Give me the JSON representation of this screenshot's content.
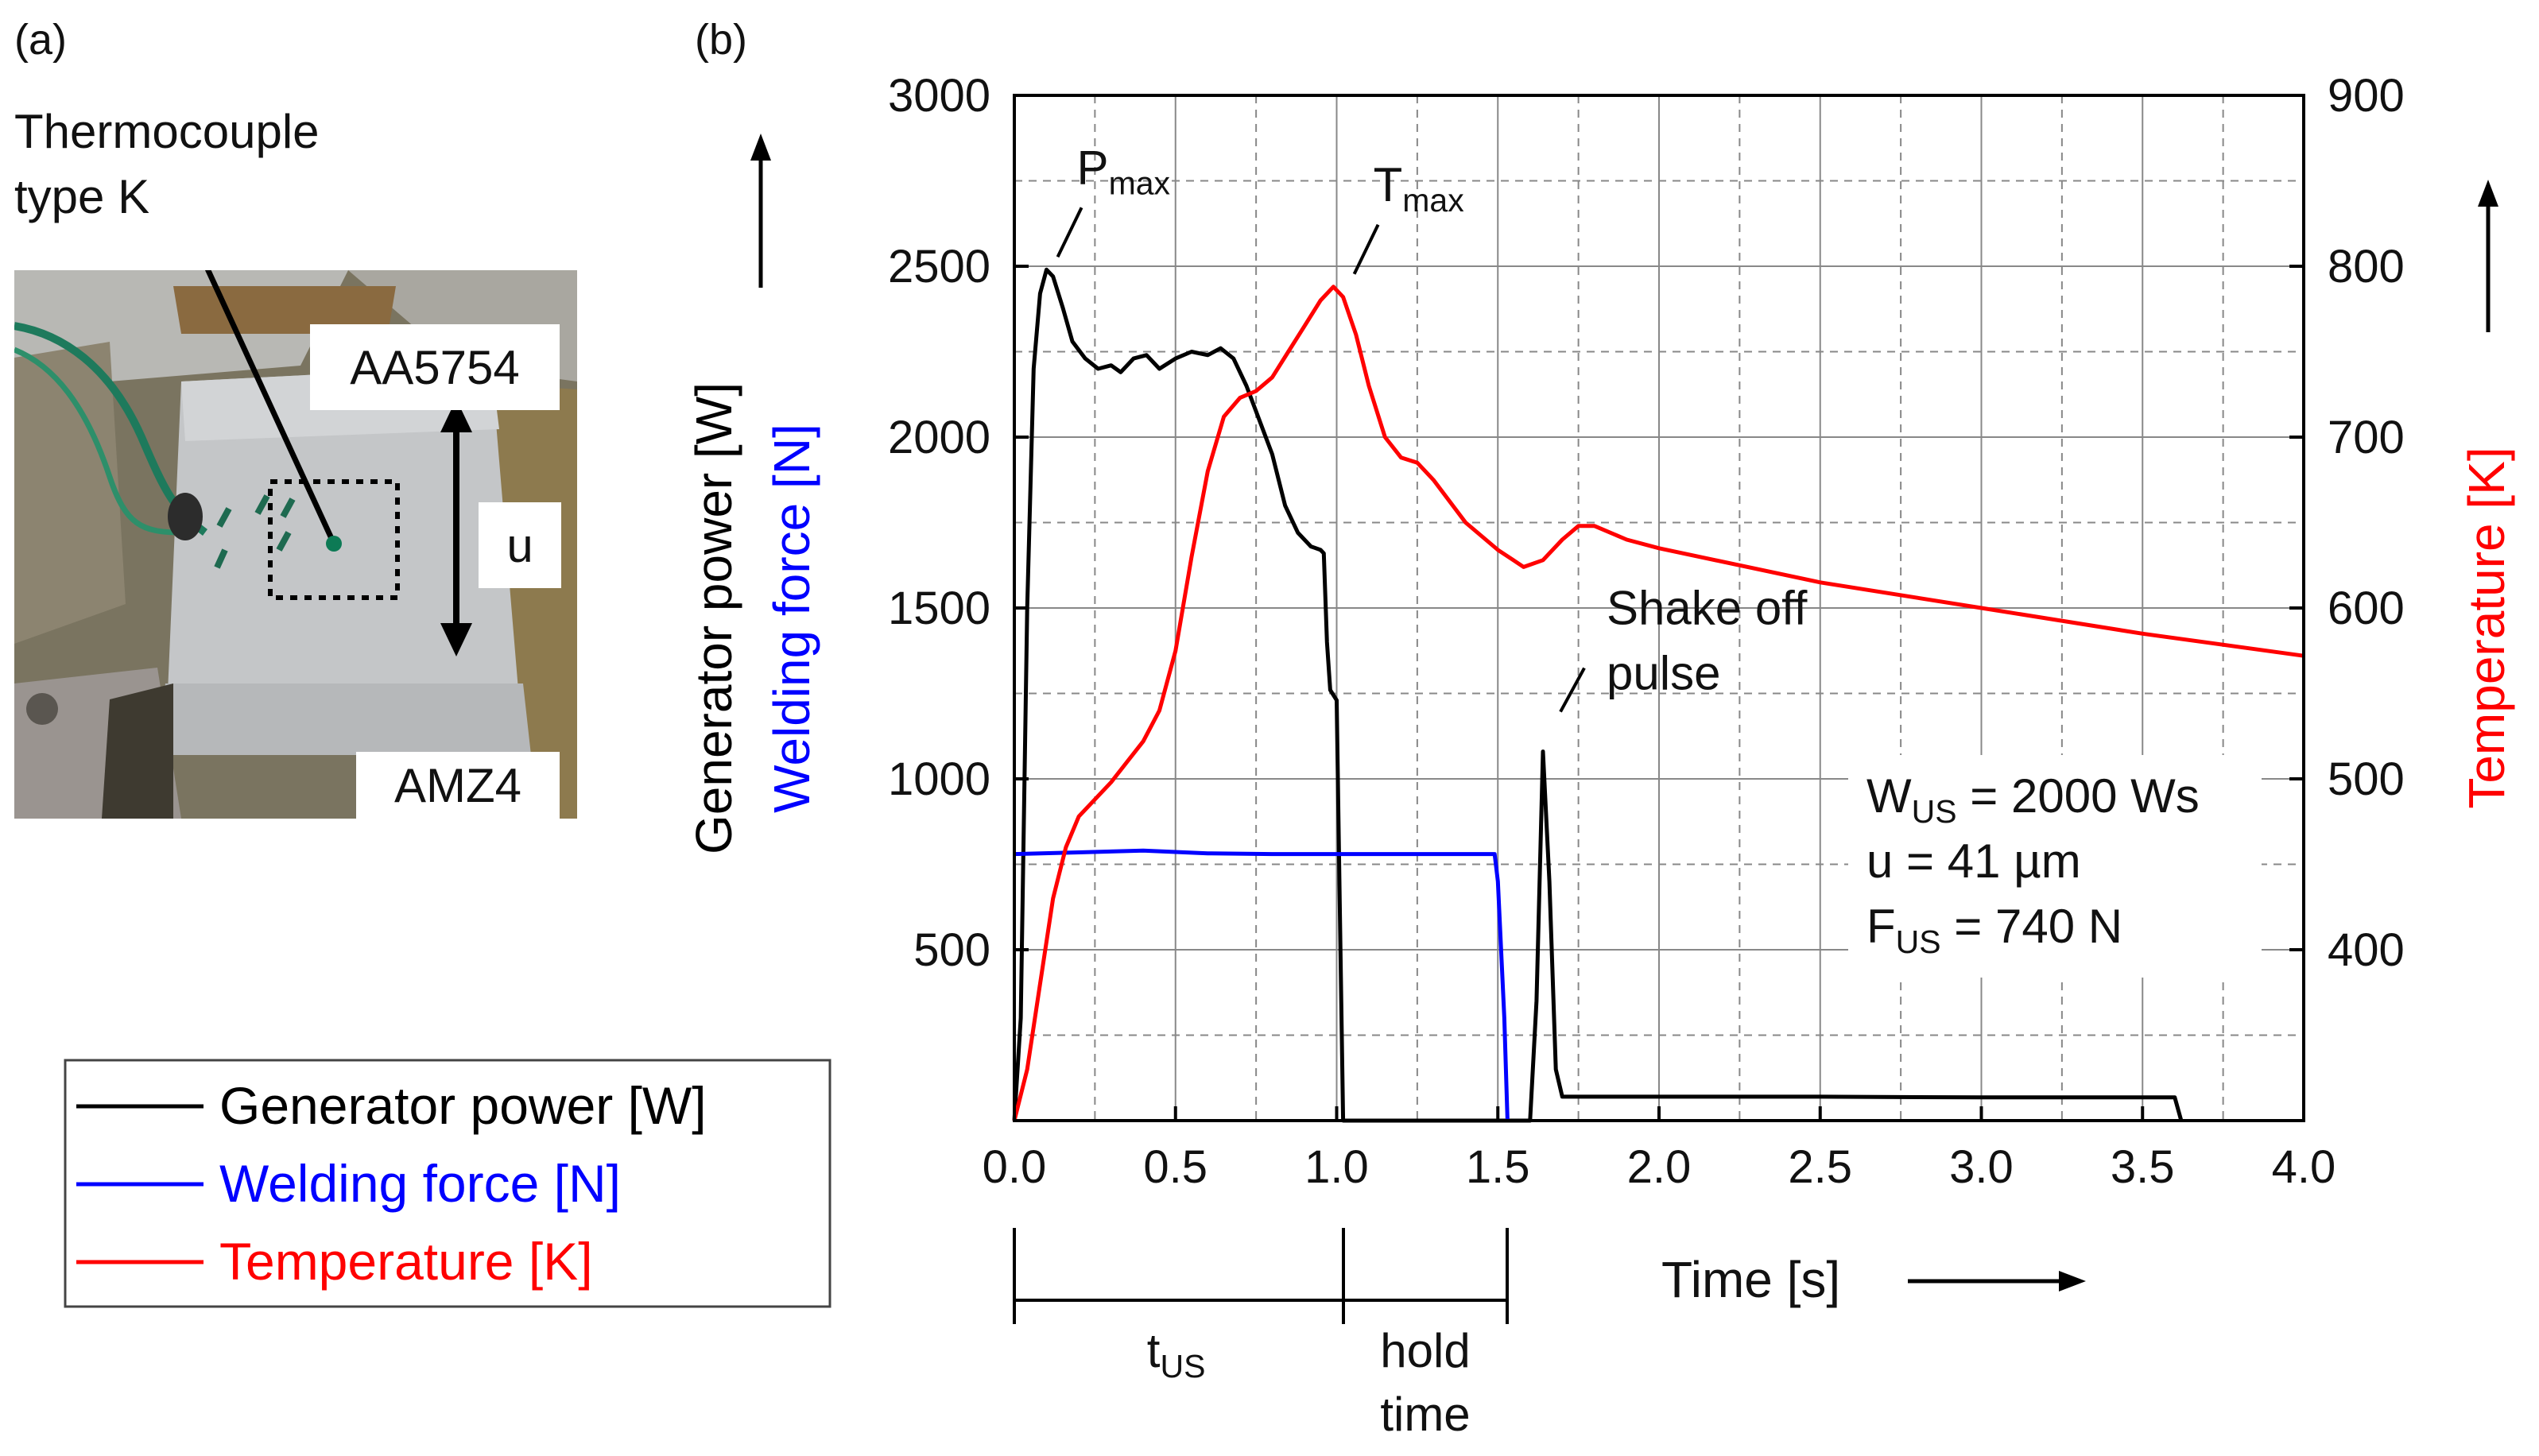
{
  "panel_a": {
    "label": "(a)",
    "callout": [
      "Thermocouple",
      "type K"
    ],
    "top_sheet": "AA5754",
    "bottom_sheet": "AMZ4",
    "amplitude_symbol": "u"
  },
  "panel_b": {
    "label": "(b)"
  },
  "colors": {
    "power": "#000000",
    "force": "#0000ff",
    "temperature": "#ff0000"
  },
  "legend": [
    {
      "text": "Generator power [W]",
      "color": "#000000"
    },
    {
      "text": "Welding force [N]",
      "color": "#0000ff"
    },
    {
      "text": "Temperature [K]",
      "color": "#ff0000"
    }
  ],
  "chart_data": {
    "type": "line",
    "xlabel": "Time [s]",
    "ylabel_left": [
      "Generator power [W]",
      "Welding force [N]"
    ],
    "ylabel_right": "Temperature [K]",
    "xlim": [
      0,
      4.0
    ],
    "ylim_left": [
      0,
      3000
    ],
    "ylim_right": [
      300,
      900
    ],
    "x_ticks": [
      "0.0",
      "0.5",
      "1.0",
      "1.5",
      "2.0",
      "2.5",
      "3.0",
      "3.5",
      "4.0"
    ],
    "x_tick_values": [
      0,
      0.5,
      1.0,
      1.5,
      2.0,
      2.5,
      3.0,
      3.5,
      4.0
    ],
    "y_left_ticks": [
      "500",
      "1000",
      "1500",
      "2000",
      "2500",
      "3000"
    ],
    "y_left_tick_values": [
      500,
      1000,
      1500,
      2000,
      2500,
      3000
    ],
    "y_right_ticks": [
      "400",
      "500",
      "600",
      "700",
      "800",
      "900"
    ],
    "y_right_tick_values": [
      400,
      500,
      600,
      700,
      800,
      900
    ],
    "grid": true,
    "series": [
      {
        "name": "Generator power [W]",
        "axis": "left",
        "color": "#000000",
        "points": [
          [
            0.0,
            0
          ],
          [
            0.02,
            300
          ],
          [
            0.04,
            1500
          ],
          [
            0.06,
            2200
          ],
          [
            0.08,
            2420
          ],
          [
            0.1,
            2490
          ],
          [
            0.12,
            2470
          ],
          [
            0.15,
            2380
          ],
          [
            0.18,
            2280
          ],
          [
            0.22,
            2230
          ],
          [
            0.26,
            2200
          ],
          [
            0.3,
            2210
          ],
          [
            0.33,
            2190
          ],
          [
            0.37,
            2230
          ],
          [
            0.41,
            2240
          ],
          [
            0.45,
            2200
          ],
          [
            0.5,
            2230
          ],
          [
            0.55,
            2250
          ],
          [
            0.6,
            2240
          ],
          [
            0.64,
            2260
          ],
          [
            0.68,
            2230
          ],
          [
            0.72,
            2150
          ],
          [
            0.76,
            2050
          ],
          [
            0.8,
            1950
          ],
          [
            0.84,
            1800
          ],
          [
            0.88,
            1720
          ],
          [
            0.92,
            1680
          ],
          [
            0.95,
            1670
          ],
          [
            0.96,
            1660
          ],
          [
            0.97,
            1400
          ],
          [
            0.98,
            1260
          ],
          [
            1.0,
            1230
          ],
          [
            1.01,
            600
          ],
          [
            1.02,
            0
          ],
          [
            1.6,
            0
          ],
          [
            1.62,
            350
          ],
          [
            1.64,
            1080
          ],
          [
            1.66,
            700
          ],
          [
            1.68,
            150
          ],
          [
            1.7,
            70
          ],
          [
            2.5,
            70
          ],
          [
            3.0,
            68
          ],
          [
            3.55,
            68
          ],
          [
            3.6,
            68
          ],
          [
            3.62,
            0
          ]
        ]
      },
      {
        "name": "Welding force [N]",
        "axis": "left",
        "color": "#0000ff",
        "points": [
          [
            0.0,
            780
          ],
          [
            0.2,
            785
          ],
          [
            0.4,
            790
          ],
          [
            0.6,
            782
          ],
          [
            0.8,
            780
          ],
          [
            1.0,
            780
          ],
          [
            1.2,
            780
          ],
          [
            1.4,
            780
          ],
          [
            1.49,
            780
          ],
          [
            1.5,
            700
          ],
          [
            1.52,
            300
          ],
          [
            1.53,
            0
          ]
        ]
      },
      {
        "name": "Temperature [K]",
        "axis": "right",
        "color": "#ff0000",
        "points": [
          [
            0.0,
            300
          ],
          [
            0.04,
            330
          ],
          [
            0.08,
            380
          ],
          [
            0.12,
            430
          ],
          [
            0.16,
            460
          ],
          [
            0.2,
            478
          ],
          [
            0.25,
            488
          ],
          [
            0.3,
            498
          ],
          [
            0.35,
            510
          ],
          [
            0.4,
            522
          ],
          [
            0.45,
            540
          ],
          [
            0.5,
            575
          ],
          [
            0.55,
            630
          ],
          [
            0.6,
            680
          ],
          [
            0.65,
            712
          ],
          [
            0.7,
            723
          ],
          [
            0.75,
            727
          ],
          [
            0.8,
            735
          ],
          [
            0.85,
            750
          ],
          [
            0.9,
            765
          ],
          [
            0.95,
            780
          ],
          [
            0.99,
            788
          ],
          [
            1.02,
            782
          ],
          [
            1.06,
            760
          ],
          [
            1.1,
            730
          ],
          [
            1.15,
            700
          ],
          [
            1.2,
            688
          ],
          [
            1.25,
            685
          ],
          [
            1.3,
            675
          ],
          [
            1.4,
            650
          ],
          [
            1.5,
            634
          ],
          [
            1.58,
            624
          ],
          [
            1.64,
            628
          ],
          [
            1.7,
            640
          ],
          [
            1.75,
            648
          ],
          [
            1.8,
            648
          ],
          [
            1.9,
            640
          ],
          [
            2.0,
            635
          ],
          [
            2.5,
            615
          ],
          [
            3.0,
            600
          ],
          [
            3.5,
            585
          ],
          [
            4.0,
            572
          ]
        ]
      }
    ],
    "annotations": [
      {
        "id": "pmax",
        "base": "P",
        "sub": "max",
        "x": 0.1,
        "y": 2490,
        "axis": "left"
      },
      {
        "id": "tmax",
        "base": "T",
        "sub": "max",
        "x": 1.02,
        "y": 788,
        "axis": "right"
      },
      {
        "id": "shake",
        "lines": [
          "Shake off",
          "pulse"
        ],
        "x": 1.64,
        "y": 1080,
        "axis": "left"
      }
    ],
    "params": [
      {
        "base": "W",
        "sub": "US",
        "rest": " = 2000 Ws"
      },
      {
        "base": "u",
        "sub": "",
        "rest": " = 41 µm"
      },
      {
        "base": "F",
        "sub": "US",
        "rest": " = 740 N"
      }
    ],
    "phases": [
      {
        "base": "t",
        "sub": "US",
        "from": 0.0,
        "to": 1.02
      },
      {
        "lines": [
          "hold",
          "time"
        ],
        "from": 1.02,
        "to": 1.53
      }
    ]
  }
}
